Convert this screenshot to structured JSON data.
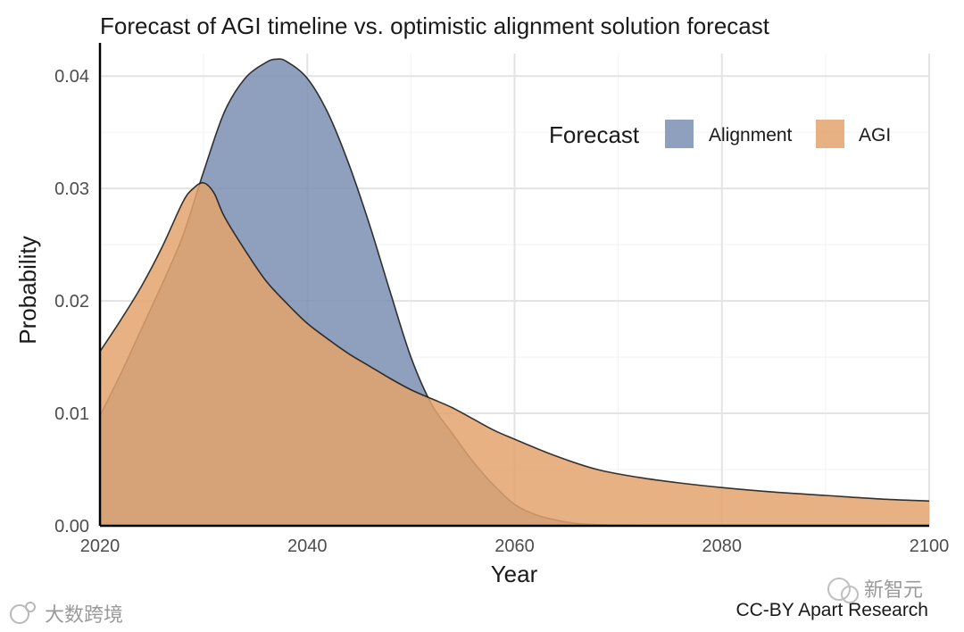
{
  "chart_data": {
    "type": "area",
    "title": "Forecast of AGI timeline vs. optimistic alignment solution forecast",
    "xlabel": "Year",
    "ylabel": "Probability",
    "xlim": [
      2020,
      2100
    ],
    "ylim": [
      0,
      0.042
    ],
    "x_ticks": [
      2020,
      2040,
      2060,
      2080,
      2100
    ],
    "x_tick_labels": [
      "2020",
      "2040",
      "2060",
      "2080",
      "2100"
    ],
    "y_ticks": [
      0,
      0.01,
      0.02,
      0.03,
      0.04
    ],
    "y_tick_labels": [
      "0.00",
      "0.01",
      "0.02",
      "0.03",
      "0.04"
    ],
    "grid": true,
    "legend": {
      "title": "Forecast",
      "placement": "top-right",
      "entries": [
        "Alignment",
        "AGI"
      ]
    },
    "series": [
      {
        "name": "Alignment",
        "color": "#7b8fb3",
        "x": [
          2020,
          2022,
          2024,
          2026,
          2028,
          2030,
          2032,
          2034,
          2036,
          2037,
          2038,
          2040,
          2042,
          2044,
          2046,
          2048,
          2050,
          2052,
          2054,
          2056,
          2058,
          2060,
          2062,
          2064,
          2066,
          2068,
          2070,
          2075,
          2080,
          2090,
          2100
        ],
        "y": [
          0.0098,
          0.0135,
          0.0175,
          0.0215,
          0.0258,
          0.0315,
          0.0368,
          0.0398,
          0.0412,
          0.0415,
          0.0413,
          0.0398,
          0.0367,
          0.0322,
          0.0268,
          0.0208,
          0.015,
          0.0108,
          0.0082,
          0.0057,
          0.0036,
          0.0019,
          0.001,
          0.0005,
          0.0002,
          0.0001,
          5e-05,
          0.0,
          0.0,
          0.0,
          0.0
        ]
      },
      {
        "name": "AGI",
        "color": "#e3a36d",
        "x": [
          2020,
          2022,
          2024,
          2026,
          2028,
          2029,
          2030,
          2031,
          2032,
          2034,
          2036,
          2038,
          2040,
          2042,
          2044,
          2046,
          2048,
          2050,
          2052,
          2054,
          2056,
          2058,
          2060,
          2064,
          2068,
          2072,
          2076,
          2080,
          2085,
          2090,
          2095,
          2100
        ],
        "y": [
          0.0155,
          0.0183,
          0.0213,
          0.0248,
          0.0288,
          0.03,
          0.0305,
          0.0296,
          0.0275,
          0.0245,
          0.0218,
          0.0198,
          0.018,
          0.0166,
          0.0153,
          0.0142,
          0.0131,
          0.0121,
          0.0113,
          0.0105,
          0.0095,
          0.0085,
          0.0077,
          0.0062,
          0.005,
          0.0043,
          0.0038,
          0.0034,
          0.003,
          0.0027,
          0.0024,
          0.0022
        ]
      }
    ]
  },
  "credit": "CC-BY Apart Research",
  "watermarks": {
    "left": "大数跨境",
    "right": "新智元"
  }
}
